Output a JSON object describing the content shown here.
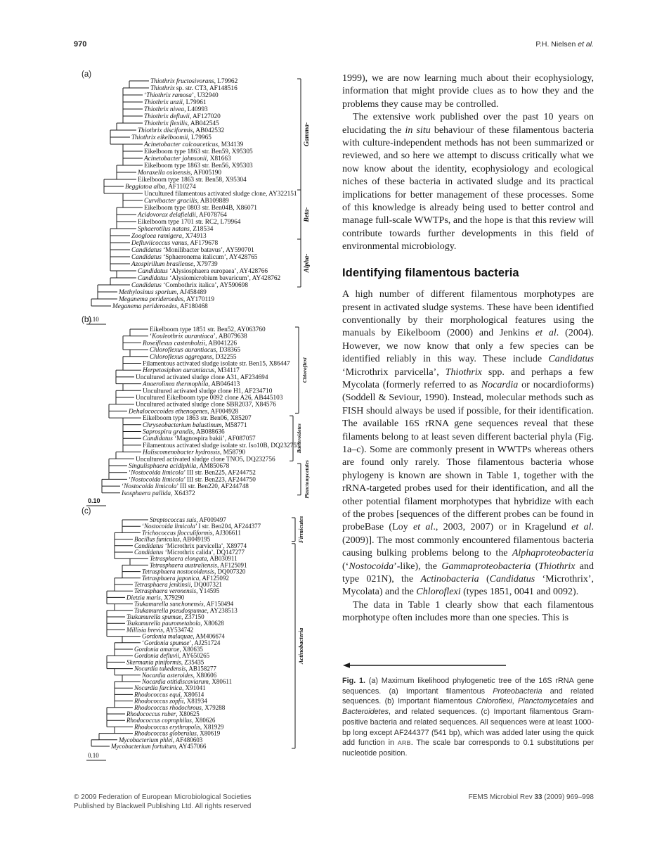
{
  "header": {
    "page_number": "970",
    "author_segments": [
      [
        "P.H. Nielsen ",
        0
      ],
      [
        "et al.",
        1
      ]
    ]
  },
  "figure": {
    "panels": [
      {
        "tag": "(a)",
        "scale_label": "0.10",
        "groups": [
          {
            "label": "Gamma-",
            "from": 1,
            "to": 16
          },
          {
            "label": "Beta-",
            "from": 17,
            "to": 23
          },
          {
            "label": "Alpha-",
            "from": 24,
            "to": 30
          }
        ],
        "leaves": [
          {
            "e": "Thiothrix fructosivorans",
            "r": ", L79962",
            "d": 6
          },
          {
            "e": "Thiothrix",
            "r": " sp. str. CT3, AF148516",
            "d": 6
          },
          {
            "p": "‘",
            "e": "Thiothrix ramosa",
            "r": "’, U32940",
            "d": 5
          },
          {
            "e": "Thiothrix unzii",
            "r": ", L79961",
            "d": 5
          },
          {
            "e": "Thiothrix nivea",
            "r": ", L40993",
            "d": 5
          },
          {
            "e": "Thiothrix defluvii",
            "r": ", AF127020",
            "d": 5
          },
          {
            "e": "Thiothrix flexilis",
            "r": ", AB042545",
            "d": 5
          },
          {
            "e": "Thiothrix disciformis",
            "r": ", AB042532",
            "d": 4
          },
          {
            "e": "Thiothrix eikelboomii",
            "r": ", L79965",
            "d": 3
          },
          {
            "e": "Acinetobacter calcoaceticus",
            "r": ", M34139",
            "d": 5
          },
          {
            "r": "Eikelboom type 1863 str. Ben59, X95305",
            "d": 5
          },
          {
            "e": "Acinetobacter johnsonii",
            "r": ", X81663",
            "d": 5
          },
          {
            "r": "Eikelboom type 1863 str. Ben56, X95303",
            "d": 5
          },
          {
            "e": "Moraxella osloensis",
            "r": ", AF005190",
            "d": 4
          },
          {
            "r": "Eikelboom type 1863 str. Ben58, X95304",
            "d": 4
          },
          {
            "e": "Beggiatoa alba",
            "r": ", AF110274",
            "d": 2
          },
          {
            "r": "Uncultured filamentous activated sludge clone, AY322151",
            "d": 5
          },
          {
            "e": "Curvibacter gracilis",
            "r": ", AB109889",
            "d": 5
          },
          {
            "r": "Eikelboom type 0803 str. Ben04B, X86071",
            "d": 5
          },
          {
            "e": "Acidovorax delafieldii",
            "r": ", AF078764",
            "d": 4
          },
          {
            "r": "Eikelboom type 1701 str. RC2, L79964",
            "d": 4
          },
          {
            "e": "Sphaerotilus natans",
            "r": ", Z18534",
            "d": 4
          },
          {
            "e": "Zoogloea ramigera",
            "r": ", X74913",
            "d": 3
          },
          {
            "e": "Defluviicoccus vanus",
            "r": ", AF179678",
            "d": 3
          },
          {
            "e": "Candidatus",
            "r": " ‘Monilibacter batavus’, AY590701",
            "d": 3
          },
          {
            "e": "Candidatus",
            "r": " ‘Sphaeronema italicum’, AY428765",
            "d": 3
          },
          {
            "e": "Azospirillum brasilense",
            "r": ", X79739",
            "d": 3
          },
          {
            "e": "Candidatus",
            "r": " ‘Alysiosphaera europaea’, AY428766",
            "d": 4
          },
          {
            "e": "Candidatus",
            "r": " ‘Alysiomicrobium bavaricum’, AY428762",
            "d": 4
          },
          {
            "e": "Candidatus",
            "r": " ‘Combothrix italica’, AY590698",
            "d": 3
          },
          {
            "e": "Methylosinus sporium",
            "r": ", AJ458489",
            "d": 1
          },
          {
            "e": "Meganema perideroedes",
            "r": ", AY170119",
            "d": 1
          },
          {
            "e": "Meganema perideroedes",
            "r": ", AF180468",
            "d": 0
          }
        ]
      },
      {
        "tag": "(b)",
        "scale_label": "0.10",
        "groups": [
          {
            "label": "Chloroflexi",
            "from": 1,
            "to": 13
          },
          {
            "label": "Bacteroidetes",
            "from": 14,
            "to": 20
          },
          {
            "label": "Planctomycetales",
            "from": 21,
            "to": 25
          }
        ],
        "leaves": [
          {
            "r": "Eikelboom type 1851 str. Ben52, AY063760",
            "d": 5
          },
          {
            "p": "‘",
            "e": "Kouleothrix aurantiaca",
            "r": "’, AB079638",
            "d": 5
          },
          {
            "e": "Roseiflexus castenholzii",
            "r": ", AB041226",
            "d": 4
          },
          {
            "e": "Chloroflexus aurantiacus",
            "r": ", D38365",
            "d": 5
          },
          {
            "e": "Chloroflexus aggregans",
            "r": ", D32255",
            "d": 5
          },
          {
            "r": "Filamentous activated sludge isolate str. Ben15, X86447",
            "d": 4
          },
          {
            "e": "Herpetosiphon aurantiacus",
            "r": ", M34117",
            "d": 4
          },
          {
            "r": "Uncultured activated sludge clone A31, AF234694",
            "d": 3
          },
          {
            "e": "Anaerolinea thermophila",
            "r": ", AB046413",
            "d": 4
          },
          {
            "r": "Uncultured activated sludge clone H1, AF234710",
            "d": 4
          },
          {
            "r": "Uncultured Eikelboom type 0092 clone A26, AB445103",
            "d": 3
          },
          {
            "r": "Uncultured activated sludge clone SBR2037, X84576",
            "d": 3
          },
          {
            "e": "Dehalococcoides ethenogenes",
            "r": ", AF004928",
            "d": 2
          },
          {
            "r": "Eikelboom type 1863 str. Ben06, X85207",
            "d": 4
          },
          {
            "e": "Chryseobacterium balustinum",
            "r": ", M58771",
            "d": 4
          },
          {
            "e": "Saprospira grandis",
            "r": ", AB088636",
            "d": 4
          },
          {
            "e": "Candidatus",
            "r": " ‘Magnospira bakii’, AF087057",
            "d": 4
          },
          {
            "r": "Filamentous activated sludge isolate str. Iso10B, DQ232755",
            "d": 4
          },
          {
            "e": "Haliscomenobacter hydrossis",
            "r": ", M58790",
            "d": 4
          },
          {
            "r": "Uncultured activated sludge clone TNO5, DQ232756",
            "d": 3
          },
          {
            "e": "Singulisphaera acidiphila",
            "r": ", AM850678",
            "d": 2
          },
          {
            "p": "‘",
            "e": "Nostocoida limicola",
            "r": "’ III str. Ben225, AF244752",
            "d": 2
          },
          {
            "p": "‘",
            "e": "Nostocoida limicola",
            "r": "’ III str. Ben223, AF244750",
            "d": 2
          },
          {
            "p": "‘",
            "e": "Nostocoida limicola",
            "r": "’ III str. Ben220, AF244748",
            "d": 1
          },
          {
            "e": "Isosphaera pallida",
            "r": ", X64372",
            "d": 1
          }
        ]
      },
      {
        "tag": "(c)",
        "scale_label": "0.10",
        "groups": [
          {
            "label": "Firmicutes",
            "from": 1,
            "to": 4
          },
          {
            "label": "Actinobacteria",
            "from": 5,
            "to": 36
          }
        ],
        "leaves": [
          {
            "e": "Streptococcus suis",
            "r": ", AF009497",
            "d": 5
          },
          {
            "p": "‘",
            "e": "Nostocoida limicola",
            "r": "’ I str. Ben204, AF244377",
            "d": 4
          },
          {
            "e": "Trichococcus flocculiformis",
            "r": ", AJ306611",
            "d": 4
          },
          {
            "e": "Bacillus funiculus",
            "r": ", AB049195",
            "d": 3
          },
          {
            "e": "Candidatus",
            "r": " ‘Microthrix parvicella’, X89774",
            "d": 3
          },
          {
            "e": "Candidatus",
            "r": " ‘Microthrix calida’, DQ147277",
            "d": 3
          },
          {
            "e": "Tetrasphaera elongata",
            "r": ", AB030911",
            "d": 5
          },
          {
            "e": "Tetrasphaera australiensis",
            "r": ", AF125091",
            "d": 5
          },
          {
            "e": "Tetrasphaera nostocoidensis",
            "r": ", DQ007320",
            "d": 4
          },
          {
            "e": "Tetrasphaera japonica",
            "r": ", AF125092",
            "d": 4
          },
          {
            "e": "Tetrasphaera jenkinsii",
            "r": ", DQ007321",
            "d": 3
          },
          {
            "e": "Tetrasphaera veronensis",
            "r": ", Y14595",
            "d": 3
          },
          {
            "e": "Dietzia maris",
            "r": ", X79290",
            "d": 2
          },
          {
            "e": "Tsukamurella sunchonensis",
            "r": ", AF150494",
            "d": 3
          },
          {
            "e": "Tsukamurella pseudospumae",
            "r": ", AY238513",
            "d": 3
          },
          {
            "e": "Tsukamurella spumae",
            "r": ", Z37150",
            "d": 2
          },
          {
            "e": "Tsukamurella paurometabola",
            "r": ", X80628",
            "d": 2
          },
          {
            "e": "Millisia brevis",
            "r": ", AY534742",
            "d": 2
          },
          {
            "e": "Gordonia malaquae",
            "r": ", AM406674",
            "d": 4
          },
          {
            "p": "‘",
            "e": "Gordonia spumae",
            "r": "’, AJ251724",
            "d": 4
          },
          {
            "e": "Gordonia amarae",
            "r": ", X80635",
            "d": 3
          },
          {
            "e": "Gordonia defluvii",
            "r": ", AY650265",
            "d": 3
          },
          {
            "e": "Skermania piniformis",
            "r": ", Z35435",
            "d": 2
          },
          {
            "e": "Nocardia takedensis",
            "r": ", AB158277",
            "d": 3
          },
          {
            "e": "Nocardia asteroides",
            "r": ", X80606",
            "d": 4
          },
          {
            "e": "Nocardia otitidiscaviarum",
            "r": ", X80611",
            "d": 4
          },
          {
            "e": "Nocardia farcinica",
            "r": ", X91041",
            "d": 3
          },
          {
            "e": "Rhodococcus equi",
            "r": ", X80614",
            "d": 3
          },
          {
            "e": "Rhodococcus zopfii",
            "r": ", X81934",
            "d": 3
          },
          {
            "e": "Rhodococcus rhodochrous",
            "r": ", X79288",
            "d": 3
          },
          {
            "e": "Rhodococcus ruber",
            "r": ", X80625",
            "d": 2
          },
          {
            "e": "Rhodococcus coprophilus",
            "r": ", X80626",
            "d": 2
          },
          {
            "e": "Rhodococcus erythropolis",
            "r": ", X81929",
            "d": 3
          },
          {
            "e": "Rhodococcus globerulus",
            "r": ", X80619",
            "d": 3
          },
          {
            "e": "Mycobacterium phlei",
            "r": ", AF480603",
            "d": 1
          },
          {
            "e": "Mycobacterium fortuitum",
            "r": ", AY457066",
            "d": 0
          }
        ]
      }
    ],
    "caption_segments": [
      [
        "Fig. 1.",
        2
      ],
      [
        " (a) Maximum likelihood phylogenetic tree of the 16S rRNA gene sequences. (a) Important filamentous ",
        0
      ],
      [
        "Proteobacteria",
        1
      ],
      [
        " and related sequences. (b) Important filamentous ",
        0
      ],
      [
        "Chloroflexi",
        1
      ],
      [
        ", ",
        0
      ],
      [
        "Planctomycetales",
        1
      ],
      [
        " and ",
        0
      ],
      [
        "Bacteroidetes",
        1
      ],
      [
        ", and related sequences. (c) Important filamentous Gram-positive bacteria and related sequences. All sequences were at least 1000-bp long except AF244377 (541 bp), which was added later using the quick add function in ",
        0
      ],
      [
        "ARB",
        3
      ],
      [
        ". The scale bar corresponds to 0.1 substitutions per nucleotide position.",
        0
      ]
    ]
  },
  "article": {
    "par1": [
      [
        "1999), we are now learning much about their ecophysiology, information that might provide clues as to how they and the problems they cause may be controlled.",
        0
      ]
    ],
    "par2": [
      [
        "The extensive work published over the past 10 years on elucidating the ",
        0
      ],
      [
        "in situ",
        1
      ],
      [
        " behaviour of these filamentous bacteria with culture-independent methods has not been summarized or reviewed, and so here we attempt to discuss critically what we now know about the identity, ecophysiology and ecological niches of these bacteria in activated sludge and its practical implications for better management of these processes. Some of this knowledge is already being used to better control and manage full-scale WWTPs, and the hope is that this review will contribute towards further developments in this field of environmental microbiology.",
        0
      ]
    ],
    "heading": "Identifying filamentous bacteria",
    "par3": [
      [
        "A high number of different filamentous morphotypes are present in activated sludge systems. These have been identified conventionally by their morphological features using the manuals by Eikelboom (2000) and Jenkins ",
        0
      ],
      [
        "et al",
        1
      ],
      [
        ". (2004). However, we now know that only a few species can be identified reliably in this way. These include ",
        0
      ],
      [
        "Candidatus",
        1
      ],
      [
        " ‘Microthrix parvicella’, ",
        0
      ],
      [
        "Thiothrix",
        1
      ],
      [
        " spp. and perhaps a few Mycolata (formerly referred to as ",
        0
      ],
      [
        "Nocardia",
        1
      ],
      [
        " or nocardioforms) (Soddell & Seviour, 1990). Instead, molecular methods such as FISH should always be used if possible, for their identification. The available 16S rRNA gene sequences reveal that these filaments belong to at least seven different bacterial phyla (Fig. 1a–c). Some are commonly present in WWTPs whereas others are found only rarely. Those filamentous bacteria whose phylogeny is known are shown in Table 1, together with the rRNA-targeted probes used for their identification, and all the other potential filament morphotypes that hybridize with each of the probes [sequences of the different probes can be found in probeBase (Loy ",
        0
      ],
      [
        "et al",
        1
      ],
      [
        "., 2003, 2007) or in Kragelund ",
        0
      ],
      [
        "et al",
        1
      ],
      [
        ". (2009)]. The most commonly encountered filamentous bacteria causing bulking problems belong to the ",
        0
      ],
      [
        "Alphaproteobacteria",
        1
      ],
      [
        " (‘",
        0
      ],
      [
        "Nostocoida",
        1
      ],
      [
        "’-like), the ",
        0
      ],
      [
        "Gammaproteobacteria",
        1
      ],
      [
        " (",
        0
      ],
      [
        "Thiothrix",
        1
      ],
      [
        " and type 021N), the ",
        0
      ],
      [
        "Actinobacteria",
        1
      ],
      [
        " (",
        0
      ],
      [
        "Candidatus",
        1
      ],
      [
        " ‘Microthrix’, Mycolata) and the ",
        0
      ],
      [
        "Chloroflexi",
        1
      ],
      [
        " (types 1851, 0041 and 0092).",
        0
      ]
    ],
    "par4": [
      [
        "The data in Table 1 clearly show that each filamentous morphotype often includes more than one species. This is",
        0
      ]
    ]
  },
  "footer": {
    "left_line1": "© 2009 Federation of European Microbiological Societies",
    "left_line2": "Published by Blackwell Publishing Ltd. All rights reserved",
    "right_segments": [
      [
        "FEMS Microbiol Rev ",
        0
      ],
      [
        "33",
        2
      ],
      [
        " (2009) 969–998",
        0
      ]
    ]
  }
}
